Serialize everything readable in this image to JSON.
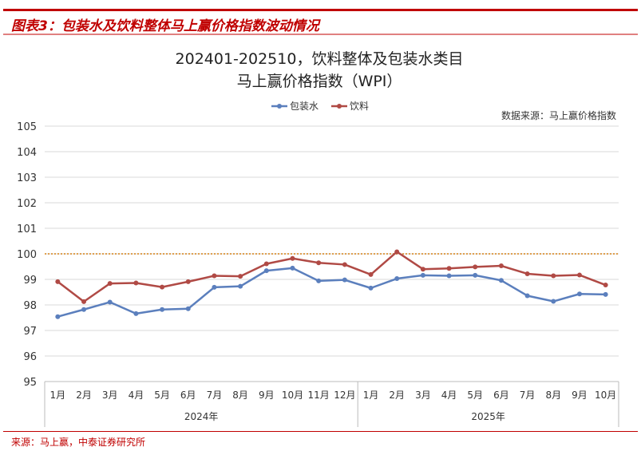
{
  "figure_title": "图表3：包装水及饮料整体马上赢价格指数波动情况",
  "source_note": "来源：马上赢，中泰证券研究所",
  "chart_data": {
    "type": "line",
    "title_lines": [
      "202401-202510，饮料整体及包装水类目",
      "马上赢价格指数（WPI）"
    ],
    "data_source_label": "数据来源：马上赢价格指数",
    "categories": [
      "1月",
      "2月",
      "3月",
      "4月",
      "5月",
      "6月",
      "7月",
      "8月",
      "9月",
      "10月",
      "11月",
      "12月",
      "1月",
      "2月",
      "3月",
      "4月",
      "5月",
      "6月",
      "7月",
      "8月",
      "9月",
      "10月"
    ],
    "year_groups": [
      {
        "label": "2024年",
        "count": 12
      },
      {
        "label": "2025年",
        "count": 10
      }
    ],
    "ylim": [
      95,
      105
    ],
    "yticks": [
      "95",
      "96",
      "97",
      "98",
      "99",
      "100",
      "101",
      "102",
      "103",
      "104",
      "105"
    ],
    "reference_line": 100,
    "grid": true,
    "legend_position": "top",
    "series": [
      {
        "name": "包装水",
        "color": "#5b7fbd",
        "values": [
          97.54,
          97.82,
          98.11,
          97.66,
          97.82,
          97.85,
          98.69,
          98.73,
          99.34,
          99.44,
          98.94,
          98.98,
          98.66,
          99.03,
          99.16,
          99.14,
          99.16,
          98.96,
          98.36,
          98.14,
          98.43,
          98.41
        ]
      },
      {
        "name": "饮料",
        "color": "#b04a45",
        "values": [
          98.91,
          98.13,
          98.84,
          98.86,
          98.7,
          98.91,
          99.14,
          99.12,
          99.61,
          99.82,
          99.65,
          99.58,
          99.19,
          100.08,
          99.4,
          99.43,
          99.49,
          99.53,
          99.22,
          99.14,
          99.17,
          98.78
        ]
      }
    ],
    "reference_color": "#e0a050"
  }
}
